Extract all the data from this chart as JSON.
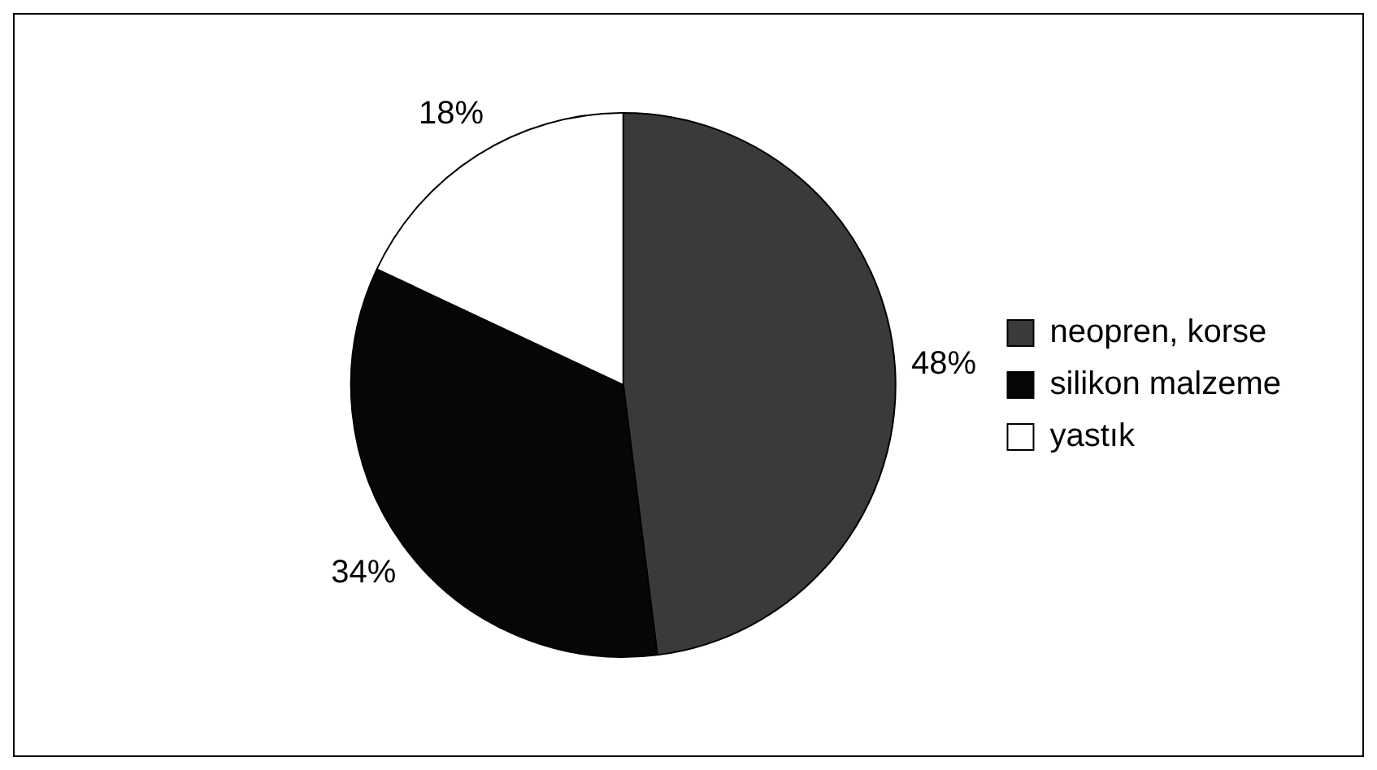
{
  "chart_data": {
    "type": "pie",
    "categories": [
      "neopren, korse",
      "silikon malzeme",
      "yastık"
    ],
    "values": [
      48,
      34,
      18
    ],
    "colors": [
      "#3a3a3a",
      "#060606",
      "#ffffff"
    ],
    "value_labels": [
      "48%",
      "34%",
      "18%"
    ],
    "legend": "right"
  }
}
